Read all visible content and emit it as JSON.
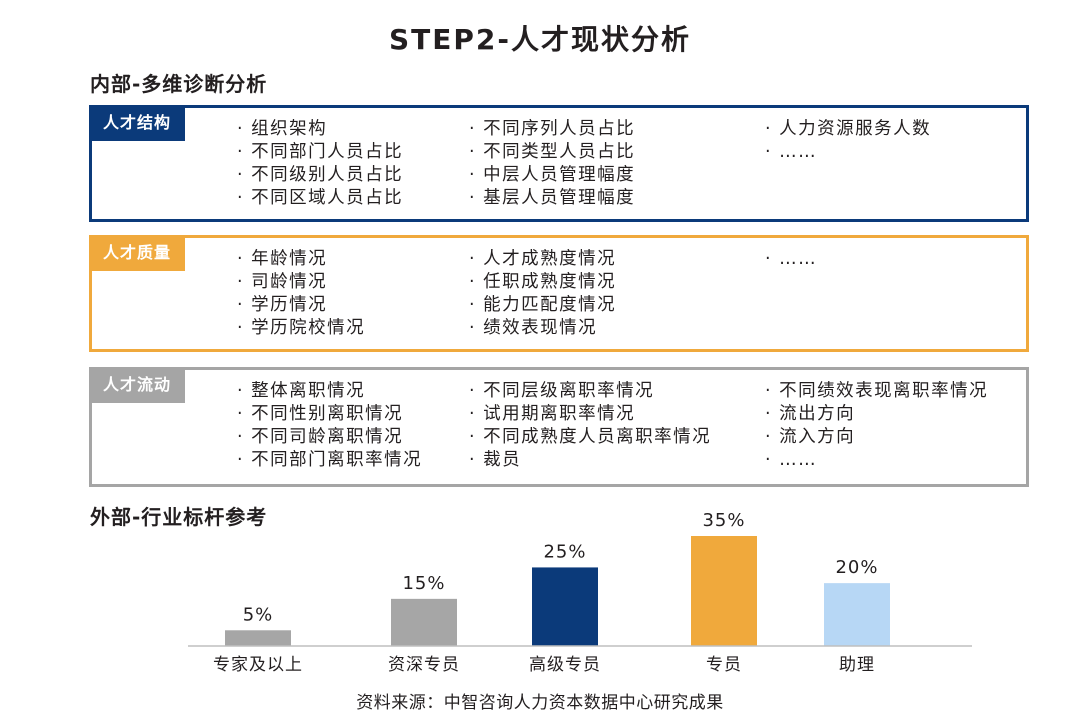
{
  "title": "STEP2-人才现状分析",
  "internal_heading": "内部-多维诊断分析",
  "external_heading": "外部-行业标杆参考",
  "sections": [
    {
      "tag": "人才结构",
      "color": "#0b3a7a",
      "columns": [
        [
          "组织架构",
          "不同部门人员占比",
          "不同级别人员占比",
          "不同区域人员占比"
        ],
        [
          "不同序列人员占比",
          "不同类型人员占比",
          "中层人员管理幅度",
          "基层人员管理幅度"
        ],
        [
          "人力资源服务人数",
          "……"
        ]
      ]
    },
    {
      "tag": "人才质量",
      "color": "#f0a93c",
      "columns": [
        [
          "年龄情况",
          "司龄情况",
          "学历情况",
          "学历院校情况"
        ],
        [
          "人才成熟度情况",
          "任职成熟度情况",
          "能力匹配度情况",
          "绩效表现情况"
        ],
        [
          "……"
        ]
      ]
    },
    {
      "tag": "人才流动",
      "color": "#a5a5a5",
      "columns": [
        [
          "整体离职情况",
          "不同性别离职情况",
          "不同司龄离职情况",
          "不同部门离职率情况"
        ],
        [
          "不同层级离职率情况",
          "试用期离职率情况",
          "不同成熟度人员离职率情况",
          "裁员"
        ],
        [
          "不同绩效表现离职率情况",
          "流出方向",
          "流入方向",
          "……"
        ]
      ]
    }
  ],
  "chart_data": {
    "type": "bar",
    "categories": [
      "专家及以上",
      "资深专员",
      "高级专员",
      "专员",
      "助理"
    ],
    "values": [
      5,
      15,
      25,
      35,
      20
    ],
    "value_labels": [
      "5%",
      "15%",
      "25%",
      "35%",
      "20%"
    ],
    "colors": [
      "#a6a6a6",
      "#a6a6a6",
      "#0b3a7a",
      "#f0a93c",
      "#b7d7f5"
    ],
    "ylim": [
      0,
      35
    ],
    "grid": false,
    "title": "",
    "xlabel": "",
    "ylabel": ""
  },
  "source": "资料来源：中智咨询人力资本数据中心研究成果"
}
